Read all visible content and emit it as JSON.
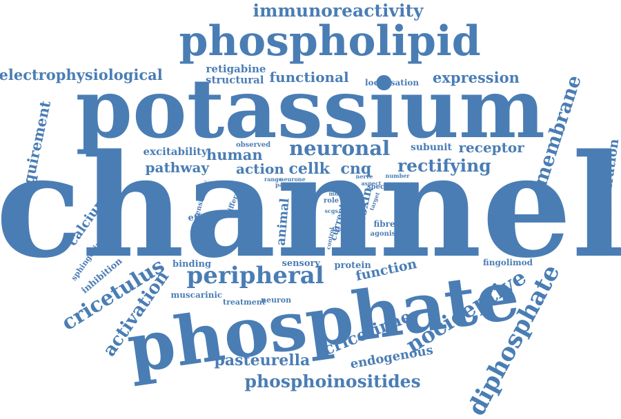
{
  "colors": {
    "word": "#4a7db4",
    "background": "#ffffff"
  },
  "words": [
    "channel",
    "potassium",
    "phosphate",
    "phospholipid",
    "immunoreactivity",
    "electrophysiological",
    "retigabine",
    "structural",
    "functional",
    "expression",
    "localisation",
    "membrane",
    "requirement",
    "neuronal",
    "excitability",
    "human",
    "observed",
    "subunit",
    "receptor",
    "pathway",
    "action",
    "cellk",
    "cnq",
    "rectifying",
    "concentration",
    "range",
    "pain",
    "nerve",
    "aspect",
    "number",
    "sensitivity",
    "different",
    "neurone",
    "more",
    "role",
    "specific",
    "target",
    "toxin",
    "animal",
    "scgs",
    "current",
    "fibre",
    "calcium",
    "effect",
    "studies",
    "activate",
    "control",
    "type",
    "agonist",
    "sphingosine",
    "inhibition",
    "binding",
    "sensory",
    "protein",
    "function",
    "fingolimod",
    "cricetulus",
    "peripheral",
    "activation",
    "muscarinic",
    "treatment",
    "neuron",
    "nociceptive",
    "cricetinae",
    "diphosphate",
    "endogenous",
    "pasteurella",
    "phosphoinositides"
  ]
}
